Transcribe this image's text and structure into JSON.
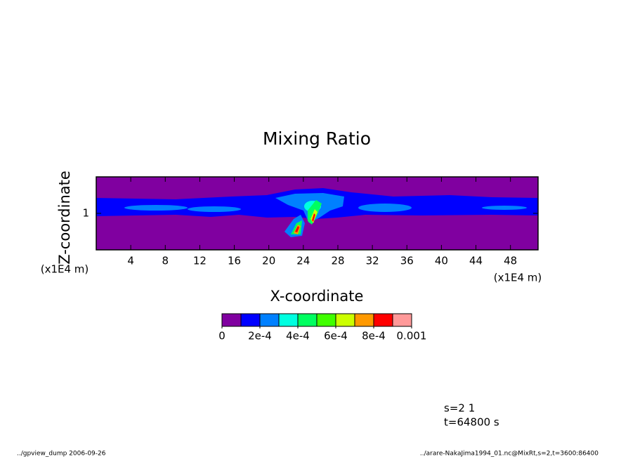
{
  "chart_data": {
    "type": "contour",
    "title": "Mixing Ratio",
    "x_label": "X-coordinate",
    "y_label": "Z-coordinate",
    "x_unit": "(x1E4 m)",
    "y_unit": "(x1E4 m)",
    "xlim": [
      0,
      51.2
    ],
    "xticks": [
      4,
      8,
      12,
      16,
      20,
      24,
      28,
      32,
      36,
      40,
      44,
      48
    ],
    "ylim": [
      0,
      2
    ],
    "yticks": [
      1
    ],
    "colorbar": {
      "levels": [
        0,
        0.0001,
        0.0002,
        0.0003,
        0.0004,
        0.0005,
        0.0006,
        0.0007,
        0.0008,
        0.0009,
        0.001
      ],
      "colors": [
        "#8000a0",
        "#0000ff",
        "#0080ff",
        "#00ffe0",
        "#00ff60",
        "#40ff00",
        "#ccff00",
        "#ff9900",
        "#ff0000",
        "#ff9999"
      ],
      "ticks": [
        0,
        {
          "value": 0.0002,
          "label": "2e-4"
        },
        {
          "value": 0.0004,
          "label": "4e-4"
        },
        {
          "value": 0.0006,
          "label": "6e-4"
        },
        {
          "value": 0.0008,
          "label": "8e-4"
        },
        0.001
      ]
    },
    "annotations": [
      "s=2 1",
      "t=64800 s"
    ],
    "footer_left": "../gpview_dump  2006-09-26",
    "footer_right": "../arare-NakaJima1994_01.nc@MixRt,s=2,t=3600:86400"
  }
}
